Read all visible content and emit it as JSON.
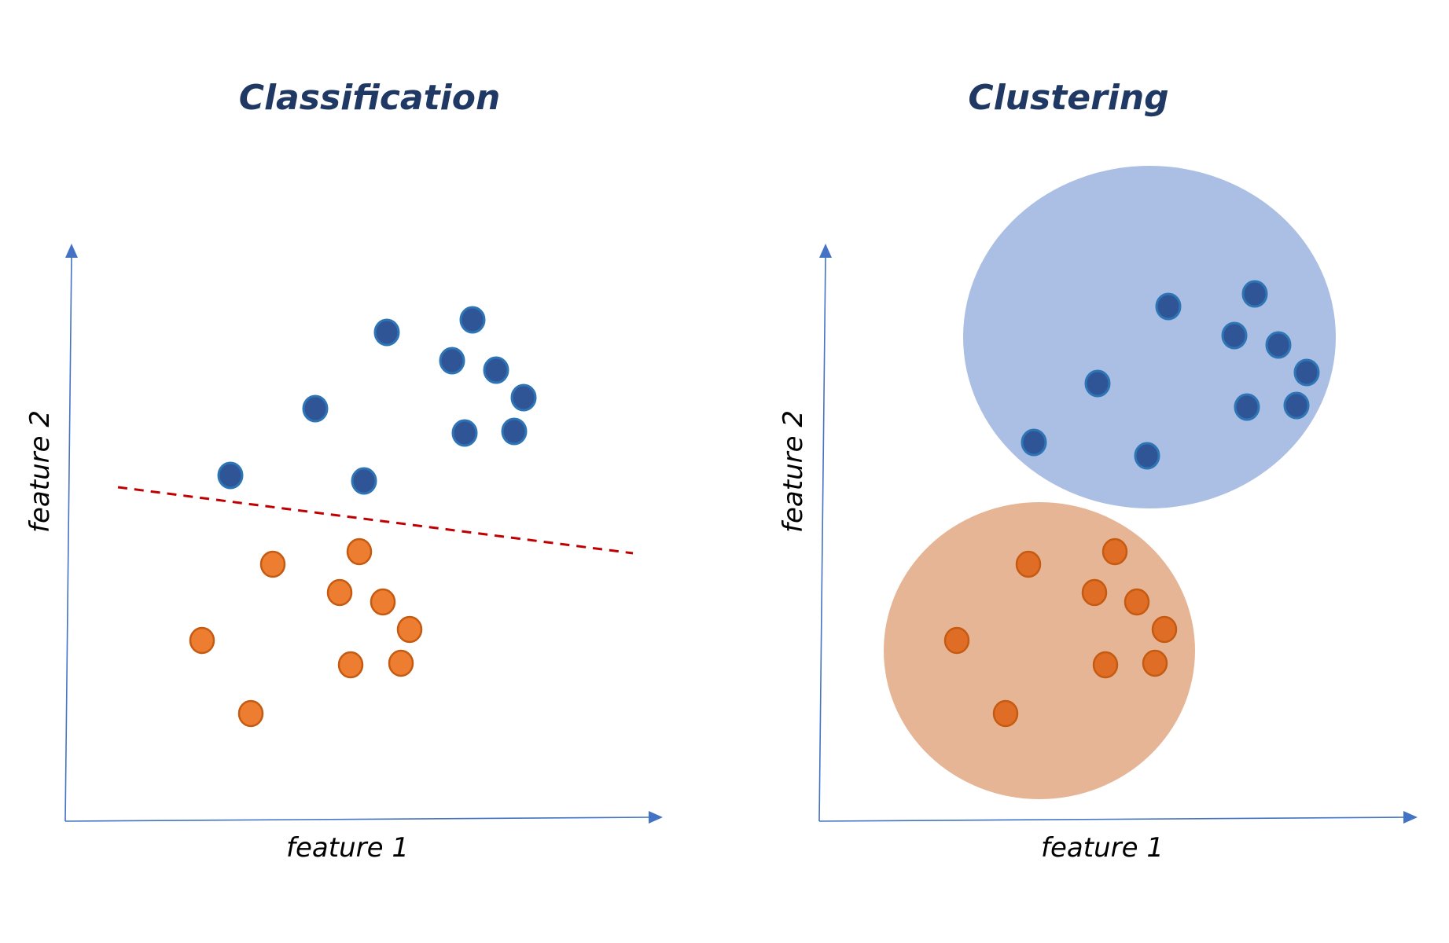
{
  "panels": [
    {
      "id": "classification",
      "title": "Classification",
      "xlabel": "feature 1",
      "ylabel": "feature 2"
    },
    {
      "id": "clustering",
      "title": "Clustering",
      "xlabel": "feature 1",
      "ylabel": "feature 2"
    }
  ],
  "colors": {
    "title": "#1f3864",
    "axis": "#4472c4",
    "class_a_point": "#2f5597",
    "class_b_point": "#ed7d31",
    "decision_boundary": "#c00000",
    "cluster_a_region": "#abbfe4",
    "cluster_b_region": "#e6b596"
  }
}
